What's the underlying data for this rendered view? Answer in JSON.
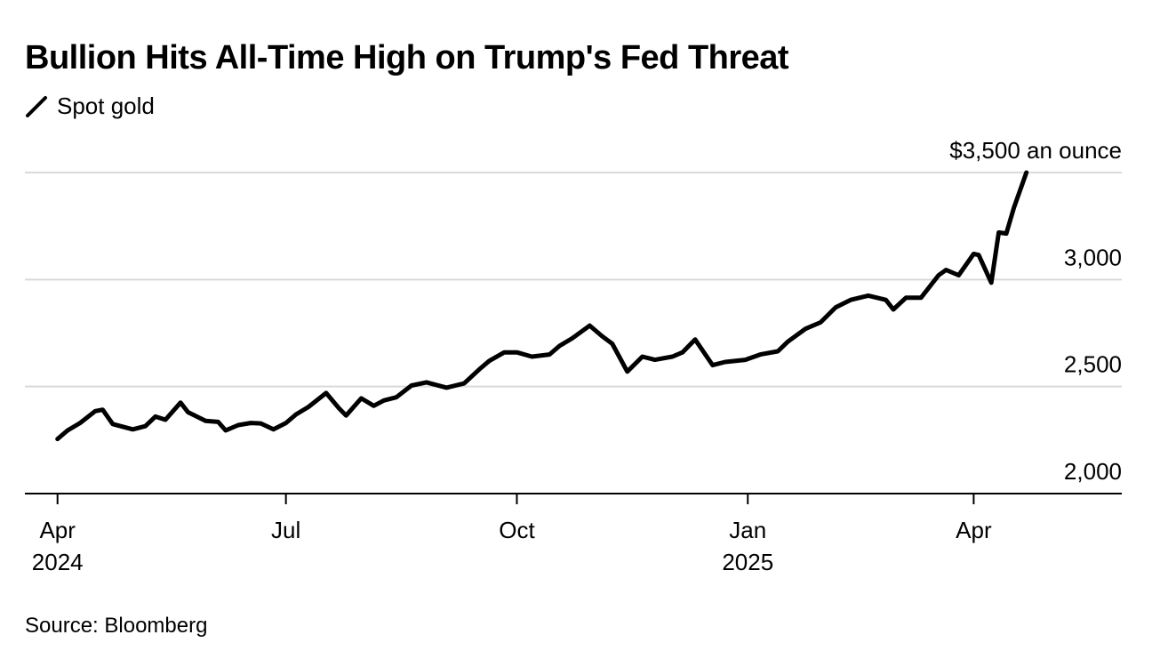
{
  "chart_data": {
    "type": "line",
    "title": "Bullion Hits All-Time High on Trump's Fed Threat",
    "legend": [
      "Spot gold"
    ],
    "series": [
      {
        "name": "Spot gold",
        "color": "#000000",
        "x": [
          "2024-04-01",
          "2024-04-05",
          "2024-04-10",
          "2024-04-16",
          "2024-04-19",
          "2024-04-23",
          "2024-05-01",
          "2024-05-06",
          "2024-05-10",
          "2024-05-14",
          "2024-05-20",
          "2024-05-23",
          "2024-05-30",
          "2024-06-04",
          "2024-06-07",
          "2024-06-12",
          "2024-06-17",
          "2024-06-21",
          "2024-06-26",
          "2024-07-01",
          "2024-07-05",
          "2024-07-10",
          "2024-07-17",
          "2024-07-22",
          "2024-07-25",
          "2024-07-31",
          "2024-08-05",
          "2024-08-09",
          "2024-08-14",
          "2024-08-20",
          "2024-08-26",
          "2024-09-03",
          "2024-09-10",
          "2024-09-16",
          "2024-09-20",
          "2024-09-26",
          "2024-10-01",
          "2024-10-07",
          "2024-10-14",
          "2024-10-18",
          "2024-10-23",
          "2024-10-30",
          "2024-11-04",
          "2024-11-08",
          "2024-11-14",
          "2024-11-20",
          "2024-11-25",
          "2024-12-02",
          "2024-12-06",
          "2024-12-11",
          "2024-12-18",
          "2024-12-23",
          "2024-12-31",
          "2025-01-06",
          "2025-01-13",
          "2025-01-17",
          "2025-01-24",
          "2025-01-30",
          "2025-02-05",
          "2025-02-11",
          "2025-02-18",
          "2025-02-25",
          "2025-02-28",
          "2025-03-05",
          "2025-03-11",
          "2025-03-18",
          "2025-03-21",
          "2025-03-26",
          "2025-04-01",
          "2025-04-03",
          "2025-04-08",
          "2025-04-11",
          "2025-04-14",
          "2025-04-17",
          "2025-04-22"
        ],
        "values": [
          2255,
          2295,
          2330,
          2385,
          2392,
          2325,
          2300,
          2315,
          2360,
          2345,
          2425,
          2380,
          2340,
          2335,
          2295,
          2320,
          2330,
          2328,
          2300,
          2330,
          2370,
          2405,
          2470,
          2400,
          2365,
          2445,
          2410,
          2435,
          2450,
          2505,
          2520,
          2495,
          2515,
          2580,
          2620,
          2660,
          2660,
          2640,
          2650,
          2690,
          2725,
          2785,
          2735,
          2700,
          2570,
          2640,
          2625,
          2640,
          2660,
          2720,
          2600,
          2615,
          2625,
          2650,
          2665,
          2710,
          2770,
          2800,
          2870,
          2905,
          2925,
          2905,
          2860,
          2915,
          2915,
          3020,
          3045,
          3020,
          3120,
          3115,
          2985,
          3220,
          3215,
          3335,
          3500
        ]
      }
    ],
    "x_ticks": [
      {
        "label": "Apr",
        "sublabel": "2024",
        "date": "2024-04-01"
      },
      {
        "label": "Jul",
        "sublabel": "",
        "date": "2024-07-01"
      },
      {
        "label": "Oct",
        "sublabel": "",
        "date": "2024-10-01"
      },
      {
        "label": "Jan",
        "sublabel": "2025",
        "date": "2025-01-01"
      },
      {
        "label": "Apr",
        "sublabel": "",
        "date": "2025-04-01"
      }
    ],
    "xlim": [
      "2024-03-19",
      "2025-05-30"
    ],
    "y_ticks": [
      {
        "value": 2000,
        "label": "2,000"
      },
      {
        "value": 2500,
        "label": "2,500"
      },
      {
        "value": 3000,
        "label": "3,000"
      },
      {
        "value": 3500,
        "label": "$3,500 an ounce"
      }
    ],
    "ylim": [
      2000,
      3500
    ],
    "grid": true
  },
  "footer": {
    "source": "Source: Bloomberg"
  }
}
